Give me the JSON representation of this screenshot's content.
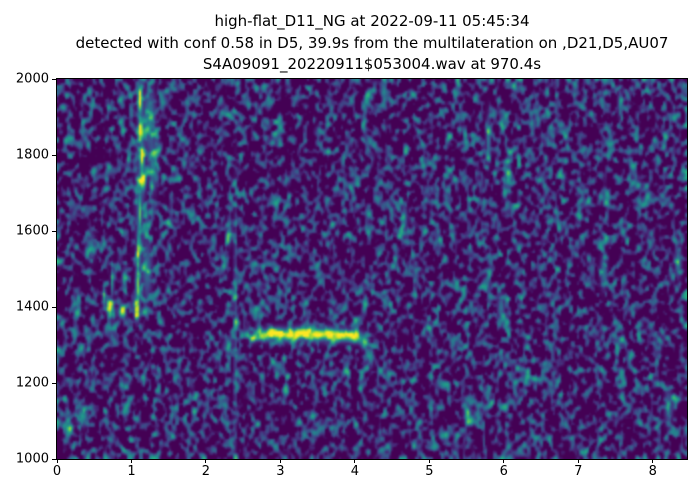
{
  "title": {
    "line1": "high-flat_D11_NG at 2022-09-11 05:45:34",
    "line2": "detected with conf 0.58 in D5, 39.9s from the multilateration on ,D21,D5,AU07",
    "line3": "S4A09091_20220911$053004.wav at 970.4s"
  },
  "chart_data": {
    "type": "heatmap",
    "subtype": "spectrogram",
    "colormap": "viridis",
    "x_range": [
      0,
      8.46
    ],
    "y_range": [
      1000,
      2000
    ],
    "x_ticks": [
      0,
      1,
      2,
      3,
      4,
      5,
      6,
      7,
      8
    ],
    "y_ticks": [
      1000,
      1200,
      1400,
      1600,
      1800,
      2000
    ],
    "grid": false,
    "background_color": "#440154",
    "palette": [
      "#440154",
      "#482878",
      "#3e4a89",
      "#31688e",
      "#26828e",
      "#1f9e89",
      "#35b779",
      "#6ece58",
      "#b5de2b",
      "#fde725"
    ],
    "noise": {
      "seed": 11,
      "cols": 315,
      "rows": 190,
      "threshold": 0.46,
      "contrast": 3.0,
      "level": 0.66
    },
    "features": [
      {
        "part": "vertical-sweep",
        "x": 1.1,
        "f": 1945,
        "sx": 0.03,
        "sf": 30,
        "a": 1.0
      },
      {
        "part": "vertical-sweep",
        "x": 1.11,
        "f": 1870,
        "sx": 0.028,
        "sf": 28,
        "a": 0.7
      },
      {
        "part": "vertical-sweep",
        "x": 1.13,
        "f": 1795,
        "sx": 0.03,
        "sf": 30,
        "a": 0.72
      },
      {
        "part": "vertical-sweep",
        "x": 1.14,
        "f": 1735,
        "sx": 0.035,
        "sf": 22,
        "a": 0.95
      },
      {
        "part": "vertical-sweep",
        "x": 1.1,
        "f": 1650,
        "sx": 0.022,
        "sf": 45,
        "a": 0.55
      },
      {
        "part": "vertical-sweep",
        "x": 1.08,
        "f": 1550,
        "sx": 0.022,
        "sf": 50,
        "a": 0.6
      },
      {
        "part": "vertical-sweep",
        "x": 1.07,
        "f": 1460,
        "sx": 0.026,
        "sf": 40,
        "a": 0.75
      },
      {
        "part": "vertical-sweep",
        "x": 1.06,
        "f": 1395,
        "sx": 0.035,
        "sf": 25,
        "a": 1.0
      },
      {
        "part": "vertical-sweep-halo",
        "x": 1.1,
        "f": 1700,
        "sx": 0.07,
        "sf": 180,
        "a": 0.2
      },
      {
        "part": "sweep-side-cloud",
        "x": 1.23,
        "f": 1900,
        "sx": 0.075,
        "sf": 70,
        "a": 0.45
      },
      {
        "part": "sweep-side-cloud",
        "x": 1.28,
        "f": 1770,
        "sx": 0.055,
        "sf": 55,
        "a": 0.42
      },
      {
        "part": "sweep-side-cloud",
        "x": 1.2,
        "f": 1500,
        "sx": 0.06,
        "sf": 70,
        "a": 0.35
      },
      {
        "part": "low-cluster",
        "x": 0.7,
        "f": 1400,
        "sx": 0.045,
        "sf": 16,
        "a": 0.95
      },
      {
        "part": "low-cluster",
        "x": 0.86,
        "f": 1390,
        "sx": 0.045,
        "sf": 15,
        "a": 0.9
      },
      {
        "part": "low-cluster",
        "x": 0.73,
        "f": 1470,
        "sx": 0.02,
        "sf": 35,
        "a": 0.55
      },
      {
        "part": "low-cluster",
        "x": 0.9,
        "f": 1470,
        "sx": 0.018,
        "sf": 35,
        "a": 0.5
      },
      {
        "part": "low-cluster",
        "x": 0.62,
        "f": 1430,
        "sx": 0.022,
        "sf": 25,
        "a": 0.55
      },
      {
        "part": "flat-tone",
        "x": 2.62,
        "f": 1322,
        "sx": 0.05,
        "sf": 12,
        "a": 0.45
      },
      {
        "part": "flat-tone",
        "x": 2.78,
        "f": 1328,
        "sx": 0.09,
        "sf": 13,
        "a": 0.8
      },
      {
        "part": "flat-tone",
        "x": 2.95,
        "f": 1332,
        "sx": 0.09,
        "sf": 13,
        "a": 0.92
      },
      {
        "part": "flat-tone",
        "x": 3.12,
        "f": 1328,
        "sx": 0.09,
        "sf": 13,
        "a": 0.85
      },
      {
        "part": "flat-tone",
        "x": 3.3,
        "f": 1335,
        "sx": 0.09,
        "sf": 13,
        "a": 0.95
      },
      {
        "part": "flat-tone",
        "x": 3.48,
        "f": 1330,
        "sx": 0.09,
        "sf": 13,
        "a": 0.88
      },
      {
        "part": "flat-tone",
        "x": 3.65,
        "f": 1332,
        "sx": 0.09,
        "sf": 13,
        "a": 0.9
      },
      {
        "part": "flat-tone",
        "x": 3.82,
        "f": 1328,
        "sx": 0.09,
        "sf": 13,
        "a": 0.92
      },
      {
        "part": "flat-tone",
        "x": 3.98,
        "f": 1325,
        "sx": 0.08,
        "sf": 14,
        "a": 1.0
      },
      {
        "part": "flat-tone-halo",
        "x": 3.35,
        "f": 1330,
        "sx": 0.55,
        "sf": 22,
        "a": 0.22
      },
      {
        "part": "flat-tone-tail",
        "x": 4.12,
        "f": 1310,
        "sx": 0.05,
        "sf": 16,
        "a": 0.75
      },
      {
        "part": "flat-tone-tail",
        "x": 4.2,
        "f": 1272,
        "sx": 0.035,
        "sf": 22,
        "a": 0.55
      },
      {
        "part": "noise-blob",
        "x": 0.33,
        "f": 1115,
        "sx": 0.07,
        "sf": 22,
        "a": 0.55
      },
      {
        "part": "noise-blob",
        "x": 0.14,
        "f": 1085,
        "sx": 0.05,
        "sf": 18,
        "a": 0.45
      },
      {
        "part": "noise-column",
        "x": 2.38,
        "f": 1350,
        "sx": 0.018,
        "sf": 330,
        "a": 0.28
      },
      {
        "part": "noise-blob",
        "x": 2.3,
        "f": 1600,
        "sx": 0.035,
        "sf": 30,
        "a": 0.4
      },
      {
        "part": "noise-blob",
        "x": 0.45,
        "f": 1560,
        "sx": 0.05,
        "sf": 30,
        "a": 0.4
      },
      {
        "part": "noise-blob",
        "x": 5.78,
        "f": 1845,
        "sx": 0.03,
        "sf": 55,
        "a": 0.42
      },
      {
        "part": "noise-blob",
        "x": 6.05,
        "f": 1750,
        "sx": 0.035,
        "sf": 45,
        "a": 0.35
      },
      {
        "part": "noise-blob",
        "x": 4.65,
        "f": 1635,
        "sx": 0.04,
        "sf": 35,
        "a": 0.35
      },
      {
        "part": "noise-blob",
        "x": 7.33,
        "f": 1495,
        "sx": 0.045,
        "sf": 40,
        "a": 0.4
      },
      {
        "part": "noise-blob",
        "x": 8.33,
        "f": 1520,
        "sx": 0.04,
        "sf": 35,
        "a": 0.45
      },
      {
        "part": "noise-blob",
        "x": 7.55,
        "f": 1940,
        "sx": 0.03,
        "sf": 35,
        "a": 0.35
      },
      {
        "part": "noise-blob",
        "x": 8.2,
        "f": 1140,
        "sx": 0.05,
        "sf": 40,
        "a": 0.38
      },
      {
        "part": "noise-blob",
        "x": 5.5,
        "f": 1125,
        "sx": 0.05,
        "sf": 30,
        "a": 0.35
      },
      {
        "part": "noise-blob",
        "x": 5.95,
        "f": 1400,
        "sx": 0.045,
        "sf": 35,
        "a": 0.38
      }
    ]
  }
}
